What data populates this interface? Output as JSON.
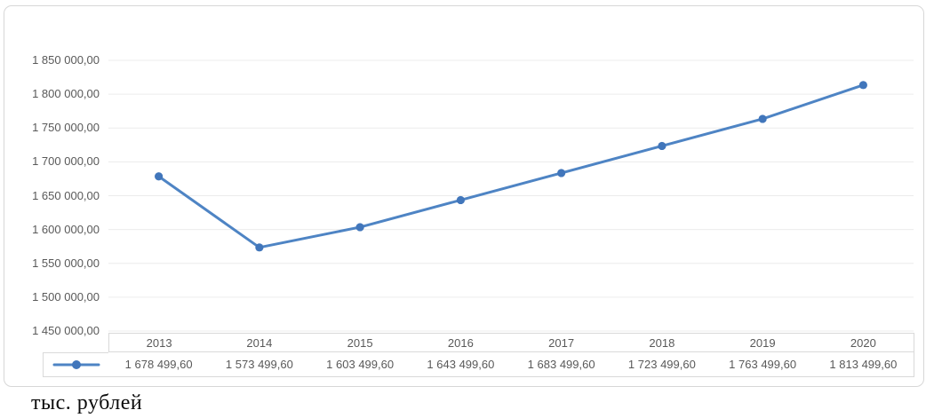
{
  "caption": "тыс. рублей",
  "chart_data": {
    "type": "line",
    "title": "",
    "xlabel": "",
    "ylabel": "",
    "categories": [
      "2013",
      "2014",
      "2015",
      "2016",
      "2017",
      "2018",
      "2019",
      "2020"
    ],
    "series": [
      {
        "name": "",
        "values": [
          1678499.6,
          1573499.6,
          1603499.6,
          1643499.6,
          1683499.6,
          1723499.6,
          1763499.6,
          1813499.6
        ],
        "value_labels": [
          "1 678 499,60",
          "1 573 499,60",
          "1 603 499,60",
          "1 643 499,60",
          "1 683 499,60",
          "1 723 499,60",
          "1 763 499,60",
          "1 813 499,60"
        ]
      }
    ],
    "ylim": [
      1450000,
      1850000
    ],
    "y_tick_step": 50000,
    "y_tick_labels": [
      "1 450 000,00",
      "1 500 000,00",
      "1 550 000,00",
      "1 600 000,00",
      "1 650 000,00",
      "1 700 000,00",
      "1 750 000,00",
      "1 800 000,00",
      "1 850 000,00"
    ],
    "grid": true,
    "legend_position": "data-table-left-key",
    "colors": {
      "line": "#4e84c4",
      "marker": "#4176bb",
      "gridline": "#ececec",
      "axis_text": "#595959",
      "table_border": "#d9d9d9",
      "frame_border": "#d7d7d7"
    }
  }
}
